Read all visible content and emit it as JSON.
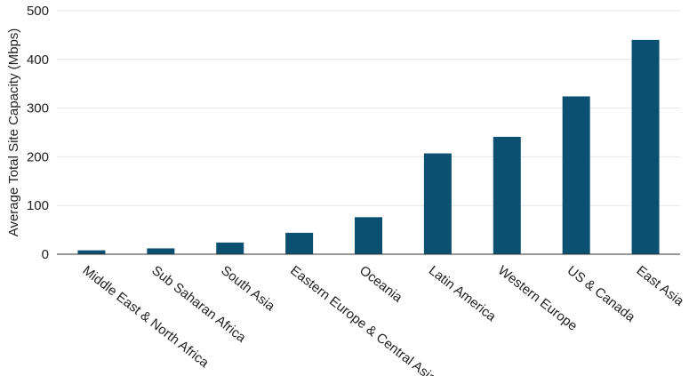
{
  "chart_data": {
    "type": "bar",
    "title": "",
    "xlabel": "",
    "ylabel": "Average Total Site Capacity (Mbps)",
    "categories": [
      "Middle East & North Africa",
      "Sub Saharan Africa",
      "South Asia",
      "Eastern Europe & Central Asia",
      "Oceania",
      "Latin America",
      "Western Europe",
      "US & Canada",
      "East Asia"
    ],
    "values": [
      8,
      12,
      24,
      44,
      76,
      207,
      241,
      324,
      440
    ],
    "ylim": [
      0,
      500
    ],
    "yticks": [
      "0",
      "100",
      "200",
      "300",
      "400",
      "500"
    ],
    "grid": true,
    "legend": "none",
    "bar_color": "#0b4f71"
  }
}
